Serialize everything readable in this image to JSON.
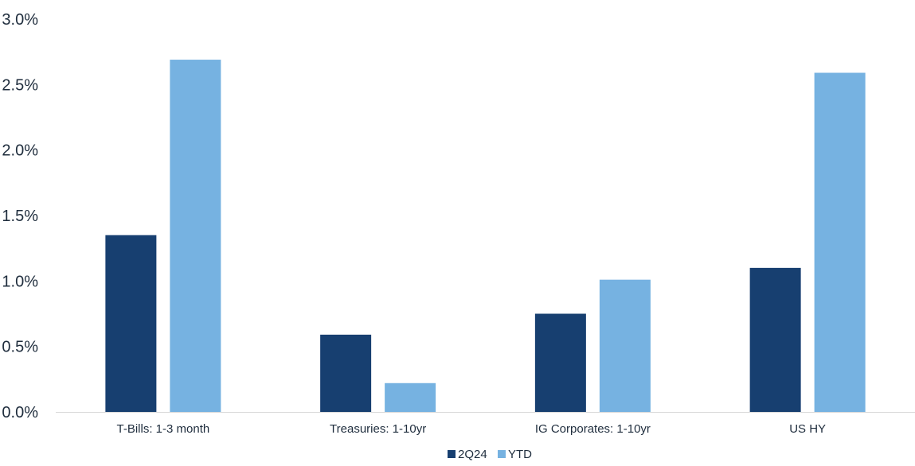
{
  "chart_data": {
    "type": "bar",
    "categories": [
      "T-Bills:  1-3 month",
      "Treasuries: 1-10yr",
      "IG Corporates: 1-10yr",
      "US HY"
    ],
    "series": [
      {
        "name": "2Q24",
        "values": [
          1.35,
          0.59,
          0.75,
          1.1
        ],
        "color": "#173f70"
      },
      {
        "name": "YTD",
        "values": [
          2.69,
          0.22,
          1.01,
          2.59
        ],
        "color": "#76b2e1"
      }
    ],
    "ylim": [
      0,
      3.0
    ],
    "yticks": [
      "0.0%",
      "0.5%",
      "1.0%",
      "1.5%",
      "2.0%",
      "2.5%",
      "3.0%"
    ],
    "ytick_values": [
      0,
      0.5,
      1.0,
      1.5,
      2.0,
      2.5,
      3.0
    ],
    "legend": "bottom-center",
    "grid": false
  }
}
